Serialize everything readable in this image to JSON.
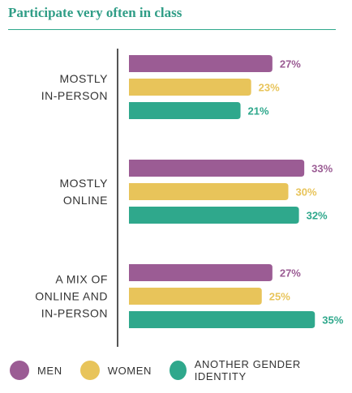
{
  "title": "Participate very often in class",
  "colors": {
    "title": "#2f9d86",
    "men": "#9b5c94",
    "women": "#e8c45a",
    "another": "#2fa88c"
  },
  "chart_data": {
    "type": "bar",
    "orientation": "horizontal",
    "title": "Participate very often in class",
    "categories": [
      [
        "MOSTLY",
        "IN-PERSON"
      ],
      [
        "MOSTLY",
        "ONLINE"
      ],
      [
        "A MIX OF",
        "ONLINE AND",
        "IN-PERSON"
      ]
    ],
    "series": [
      {
        "name": "MEN",
        "color": "#9b5c94",
        "values": [
          27,
          33,
          27
        ]
      },
      {
        "name": "WOMEN",
        "color": "#e8c45a",
        "values": [
          23,
          30,
          25
        ]
      },
      {
        "name": "ANOTHER GENDER IDENTITY",
        "color": "#2fa88c",
        "values": [
          21,
          32,
          35
        ]
      }
    ],
    "value_format": "{v}%",
    "xlim": [
      0,
      40
    ],
    "grid": false,
    "legend_position": "bottom"
  },
  "legend": [
    {
      "label": "MEN",
      "color": "#9b5c94"
    },
    {
      "label": "WOMEN",
      "color": "#e8c45a"
    },
    {
      "label": "ANOTHER GENDER IDENTITY",
      "color": "#2fa88c"
    }
  ]
}
